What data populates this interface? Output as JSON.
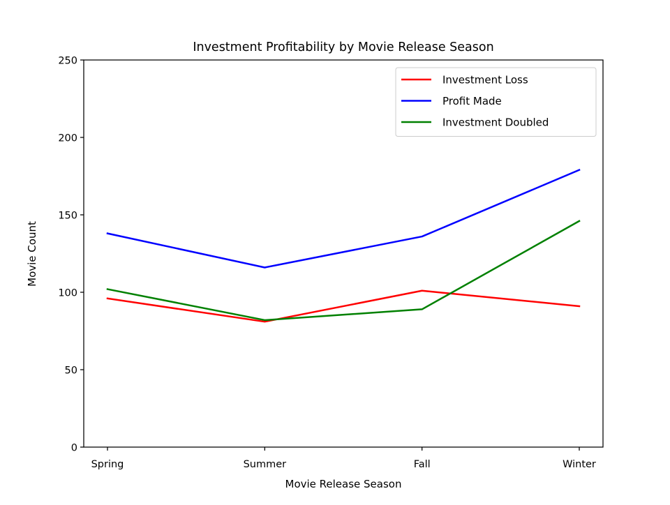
{
  "chart_data": {
    "type": "line",
    "title": "Investment Profitability by Movie Release Season",
    "xlabel": "Movie Release Season",
    "ylabel": "Movie Count",
    "categories": [
      "Spring",
      "Summer",
      "Fall",
      "Winter"
    ],
    "ylim": [
      0,
      250
    ],
    "yticks": [
      0,
      50,
      100,
      150,
      200,
      250
    ],
    "grid": false,
    "legend_position": "top-right",
    "series": [
      {
        "name": "Investment Loss",
        "color": "#ff0000",
        "values": [
          96,
          81,
          101,
          91
        ]
      },
      {
        "name": "Profit Made",
        "color": "#0000ff",
        "values": [
          138,
          116,
          136,
          179
        ]
      },
      {
        "name": "Investment Doubled",
        "color": "#008000",
        "values": [
          102,
          82,
          89,
          146
        ]
      }
    ]
  }
}
